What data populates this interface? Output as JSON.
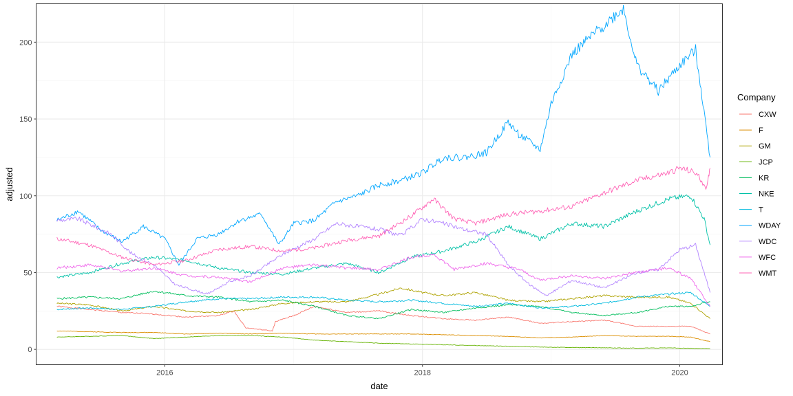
{
  "chart_data": {
    "type": "line",
    "title": "",
    "xlabel": "date",
    "ylabel": "adjusted",
    "xlim": [
      "2015-01-01",
      "2020-05-01"
    ],
    "ylim": [
      -10,
      225
    ],
    "x_ticks": [
      {
        "value": "2016-01-01",
        "label": "2016"
      },
      {
        "value": "2018-01-01",
        "label": "2018"
      },
      {
        "value": "2020-01-01",
        "label": "2020"
      }
    ],
    "y_ticks": [
      0,
      50,
      100,
      150,
      200
    ],
    "grid": true,
    "legend": {
      "title": "Company",
      "position": "right"
    },
    "series": [
      {
        "name": "CXW",
        "color": "#F8766D",
        "points": [
          [
            "2015-03-01",
            28
          ],
          [
            "2015-06-01",
            26
          ],
          [
            "2015-09-01",
            24
          ],
          [
            "2015-12-01",
            23
          ],
          [
            "2016-03-01",
            21
          ],
          [
            "2016-06-01",
            22
          ],
          [
            "2016-07-15",
            25
          ],
          [
            "2016-08-18",
            14
          ],
          [
            "2016-11-01",
            12
          ],
          [
            "2016-11-10",
            18
          ],
          [
            "2017-01-01",
            22
          ],
          [
            "2017-03-01",
            28
          ],
          [
            "2017-06-01",
            24
          ],
          [
            "2017-09-01",
            25
          ],
          [
            "2017-12-01",
            22
          ],
          [
            "2018-03-01",
            20
          ],
          [
            "2018-06-01",
            19
          ],
          [
            "2018-09-01",
            21
          ],
          [
            "2018-12-01",
            17
          ],
          [
            "2019-03-01",
            18
          ],
          [
            "2019-06-01",
            19
          ],
          [
            "2019-09-01",
            15
          ],
          [
            "2019-12-01",
            15
          ],
          [
            "2020-02-01",
            15
          ],
          [
            "2020-03-27",
            10
          ]
        ]
      },
      {
        "name": "F",
        "color": "#DB8E00",
        "points": [
          [
            "2015-03-01",
            12
          ],
          [
            "2015-06-01",
            11.5
          ],
          [
            "2015-09-01",
            11
          ],
          [
            "2015-12-01",
            11
          ],
          [
            "2016-03-01",
            10
          ],
          [
            "2016-06-01",
            10.5
          ],
          [
            "2016-09-01",
            10
          ],
          [
            "2016-12-01",
            10.5
          ],
          [
            "2017-03-01",
            10
          ],
          [
            "2017-06-01",
            10
          ],
          [
            "2017-09-01",
            10
          ],
          [
            "2017-12-01",
            10
          ],
          [
            "2018-03-01",
            9.5
          ],
          [
            "2018-06-01",
            9
          ],
          [
            "2018-09-01",
            8.5
          ],
          [
            "2018-12-01",
            7.5
          ],
          [
            "2019-03-01",
            8
          ],
          [
            "2019-06-01",
            9
          ],
          [
            "2019-09-01",
            8.5
          ],
          [
            "2019-12-01",
            8.5
          ],
          [
            "2020-02-01",
            8
          ],
          [
            "2020-03-27",
            5
          ]
        ]
      },
      {
        "name": "GM",
        "color": "#AEA200",
        "points": [
          [
            "2015-03-01",
            30
          ],
          [
            "2015-06-01",
            29
          ],
          [
            "2015-09-01",
            25
          ],
          [
            "2015-12-01",
            28
          ],
          [
            "2016-03-01",
            25
          ],
          [
            "2016-06-01",
            24
          ],
          [
            "2016-09-01",
            26
          ],
          [
            "2016-12-01",
            30
          ],
          [
            "2017-03-01",
            31
          ],
          [
            "2017-06-01",
            31
          ],
          [
            "2017-09-01",
            36
          ],
          [
            "2017-11-01",
            40
          ],
          [
            "2018-01-01",
            37
          ],
          [
            "2018-03-01",
            35
          ],
          [
            "2018-06-01",
            37
          ],
          [
            "2018-09-01",
            32
          ],
          [
            "2018-12-01",
            31
          ],
          [
            "2019-03-01",
            33
          ],
          [
            "2019-06-01",
            35
          ],
          [
            "2019-09-01",
            34
          ],
          [
            "2019-12-01",
            34
          ],
          [
            "2020-02-01",
            30
          ],
          [
            "2020-03-27",
            20
          ]
        ]
      },
      {
        "name": "JCP",
        "color": "#64B200",
        "points": [
          [
            "2015-03-01",
            8
          ],
          [
            "2015-06-01",
            8.5
          ],
          [
            "2015-09-01",
            9
          ],
          [
            "2015-12-01",
            7
          ],
          [
            "2016-03-01",
            8
          ],
          [
            "2016-06-01",
            9
          ],
          [
            "2016-09-01",
            9
          ],
          [
            "2016-12-01",
            8
          ],
          [
            "2017-03-01",
            6
          ],
          [
            "2017-06-01",
            5
          ],
          [
            "2017-09-01",
            4
          ],
          [
            "2017-12-01",
            3.5
          ],
          [
            "2018-03-01",
            3
          ],
          [
            "2018-06-01",
            2.5
          ],
          [
            "2018-09-01",
            2
          ],
          [
            "2018-12-01",
            1.5
          ],
          [
            "2019-03-01",
            1.2
          ],
          [
            "2019-06-01",
            1
          ],
          [
            "2019-09-01",
            0.8
          ],
          [
            "2019-12-01",
            1
          ],
          [
            "2020-03-27",
            0.4
          ]
        ]
      },
      {
        "name": "KR",
        "color": "#00BD5C",
        "points": [
          [
            "2015-03-01",
            33
          ],
          [
            "2015-06-01",
            34
          ],
          [
            "2015-09-01",
            33
          ],
          [
            "2015-12-01",
            38
          ],
          [
            "2016-03-01",
            35
          ],
          [
            "2016-06-01",
            34
          ],
          [
            "2016-09-01",
            31
          ],
          [
            "2016-12-01",
            32
          ],
          [
            "2017-03-01",
            28
          ],
          [
            "2017-06-01",
            22
          ],
          [
            "2017-09-01",
            20
          ],
          [
            "2017-12-01",
            26
          ],
          [
            "2018-03-01",
            24
          ],
          [
            "2018-06-01",
            27
          ],
          [
            "2018-09-01",
            29
          ],
          [
            "2018-12-01",
            28
          ],
          [
            "2019-03-01",
            24
          ],
          [
            "2019-06-01",
            22
          ],
          [
            "2019-09-01",
            24
          ],
          [
            "2019-12-01",
            28
          ],
          [
            "2020-02-01",
            28
          ],
          [
            "2020-03-27",
            31
          ]
        ]
      },
      {
        "name": "NKE",
        "color": "#00C1A7",
        "points": [
          [
            "2015-03-01",
            47
          ],
          [
            "2015-06-01",
            50
          ],
          [
            "2015-09-01",
            56
          ],
          [
            "2015-12-01",
            60
          ],
          [
            "2016-03-01",
            58
          ],
          [
            "2016-06-01",
            53
          ],
          [
            "2016-09-01",
            50
          ],
          [
            "2016-12-01",
            49
          ],
          [
            "2017-03-01",
            53
          ],
          [
            "2017-06-01",
            56
          ],
          [
            "2017-09-01",
            50
          ],
          [
            "2017-12-01",
            60
          ],
          [
            "2018-03-01",
            64
          ],
          [
            "2018-06-01",
            70
          ],
          [
            "2018-09-01",
            80
          ],
          [
            "2018-12-01",
            72
          ],
          [
            "2019-03-01",
            82
          ],
          [
            "2019-06-01",
            80
          ],
          [
            "2019-09-01",
            90
          ],
          [
            "2019-12-01",
            98
          ],
          [
            "2020-02-01",
            100
          ],
          [
            "2020-03-10",
            85
          ],
          [
            "2020-03-27",
            68
          ]
        ]
      },
      {
        "name": "T",
        "color": "#00BADE",
        "points": [
          [
            "2015-03-01",
            26
          ],
          [
            "2015-06-01",
            27
          ],
          [
            "2015-09-01",
            26
          ],
          [
            "2015-12-01",
            28
          ],
          [
            "2016-03-01",
            31
          ],
          [
            "2016-06-01",
            33
          ],
          [
            "2016-09-01",
            33
          ],
          [
            "2016-12-01",
            34
          ],
          [
            "2017-03-01",
            34
          ],
          [
            "2017-06-01",
            32
          ],
          [
            "2017-09-01",
            31
          ],
          [
            "2017-12-01",
            32
          ],
          [
            "2018-03-01",
            30
          ],
          [
            "2018-06-01",
            28
          ],
          [
            "2018-09-01",
            30
          ],
          [
            "2018-12-01",
            27
          ],
          [
            "2019-03-01",
            28
          ],
          [
            "2019-06-01",
            30
          ],
          [
            "2019-09-01",
            34
          ],
          [
            "2019-12-01",
            36
          ],
          [
            "2020-02-01",
            37
          ],
          [
            "2020-03-27",
            28
          ]
        ]
      },
      {
        "name": "WDAY",
        "color": "#00A6FF",
        "points": [
          [
            "2015-03-01",
            84
          ],
          [
            "2015-05-01",
            90
          ],
          [
            "2015-07-01",
            78
          ],
          [
            "2015-09-01",
            70
          ],
          [
            "2015-11-01",
            80
          ],
          [
            "2016-01-01",
            72
          ],
          [
            "2016-02-10",
            55
          ],
          [
            "2016-04-01",
            72
          ],
          [
            "2016-06-01",
            75
          ],
          [
            "2016-08-01",
            84
          ],
          [
            "2016-10-01",
            88
          ],
          [
            "2016-11-20",
            68
          ],
          [
            "2017-01-01",
            82
          ],
          [
            "2017-03-01",
            84
          ],
          [
            "2017-05-01",
            96
          ],
          [
            "2017-07-01",
            100
          ],
          [
            "2017-09-01",
            107
          ],
          [
            "2017-11-01",
            110
          ],
          [
            "2018-01-01",
            115
          ],
          [
            "2018-03-01",
            125
          ],
          [
            "2018-05-01",
            125
          ],
          [
            "2018-07-01",
            128
          ],
          [
            "2018-09-01",
            148
          ],
          [
            "2018-10-01",
            140
          ],
          [
            "2018-12-01",
            130
          ],
          [
            "2019-01-01",
            160
          ],
          [
            "2019-03-01",
            192
          ],
          [
            "2019-05-01",
            205
          ],
          [
            "2019-07-25",
            222
          ],
          [
            "2019-09-01",
            185
          ],
          [
            "2019-11-01",
            168
          ],
          [
            "2020-01-01",
            185
          ],
          [
            "2020-02-15",
            195
          ],
          [
            "2020-03-01",
            170
          ],
          [
            "2020-03-27",
            125
          ]
        ]
      },
      {
        "name": "WDC",
        "color": "#B385FF",
        "points": [
          [
            "2015-03-01",
            84
          ],
          [
            "2015-05-01",
            85
          ],
          [
            "2015-08-01",
            75
          ],
          [
            "2015-10-01",
            62
          ],
          [
            "2015-12-01",
            55
          ],
          [
            "2016-02-01",
            42
          ],
          [
            "2016-05-01",
            36
          ],
          [
            "2016-07-01",
            44
          ],
          [
            "2016-09-01",
            48
          ],
          [
            "2016-12-01",
            62
          ],
          [
            "2017-03-01",
            72
          ],
          [
            "2017-05-01",
            82
          ],
          [
            "2017-07-01",
            80
          ],
          [
            "2017-09-01",
            78
          ],
          [
            "2017-11-01",
            74
          ],
          [
            "2018-01-01",
            85
          ],
          [
            "2018-03-01",
            82
          ],
          [
            "2018-05-01",
            78
          ],
          [
            "2018-07-01",
            75
          ],
          [
            "2018-09-01",
            55
          ],
          [
            "2018-11-01",
            42
          ],
          [
            "2018-12-20",
            35
          ],
          [
            "2019-03-01",
            45
          ],
          [
            "2019-06-01",
            40
          ],
          [
            "2019-09-01",
            50
          ],
          [
            "2019-11-01",
            52
          ],
          [
            "2020-01-01",
            65
          ],
          [
            "2020-02-15",
            68
          ],
          [
            "2020-03-27",
            37
          ]
        ]
      },
      {
        "name": "WFC",
        "color": "#EF67EB",
        "points": [
          [
            "2015-03-01",
            53
          ],
          [
            "2015-06-01",
            55
          ],
          [
            "2015-09-01",
            51
          ],
          [
            "2015-12-01",
            53
          ],
          [
            "2016-03-01",
            48
          ],
          [
            "2016-06-01",
            47
          ],
          [
            "2016-09-01",
            44
          ],
          [
            "2016-12-01",
            53
          ],
          [
            "2017-03-01",
            55
          ],
          [
            "2017-06-01",
            53
          ],
          [
            "2017-09-01",
            52
          ],
          [
            "2017-12-01",
            60
          ],
          [
            "2018-02-01",
            62
          ],
          [
            "2018-04-01",
            52
          ],
          [
            "2018-07-01",
            56
          ],
          [
            "2018-10-01",
            52
          ],
          [
            "2018-12-01",
            45
          ],
          [
            "2019-03-01",
            48
          ],
          [
            "2019-06-01",
            46
          ],
          [
            "2019-09-01",
            50
          ],
          [
            "2019-12-01",
            53
          ],
          [
            "2020-02-01",
            46
          ],
          [
            "2020-03-27",
            28
          ]
        ]
      },
      {
        "name": "WMT",
        "color": "#FF63B6",
        "points": [
          [
            "2015-03-01",
            72
          ],
          [
            "2015-06-01",
            68
          ],
          [
            "2015-09-01",
            60
          ],
          [
            "2015-12-01",
            55
          ],
          [
            "2016-03-01",
            58
          ],
          [
            "2016-06-01",
            65
          ],
          [
            "2016-09-01",
            67
          ],
          [
            "2016-12-01",
            64
          ],
          [
            "2017-03-01",
            66
          ],
          [
            "2017-06-01",
            71
          ],
          [
            "2017-09-01",
            74
          ],
          [
            "2017-12-01",
            87
          ],
          [
            "2018-02-01",
            98
          ],
          [
            "2018-04-01",
            85
          ],
          [
            "2018-06-01",
            82
          ],
          [
            "2018-09-01",
            88
          ],
          [
            "2018-12-01",
            90
          ],
          [
            "2019-03-01",
            93
          ],
          [
            "2019-06-01",
            102
          ],
          [
            "2019-09-01",
            110
          ],
          [
            "2019-12-01",
            115
          ],
          [
            "2020-01-01",
            118
          ],
          [
            "2020-02-15",
            115
          ],
          [
            "2020-03-18",
            105
          ],
          [
            "2020-03-27",
            118
          ]
        ]
      }
    ]
  }
}
